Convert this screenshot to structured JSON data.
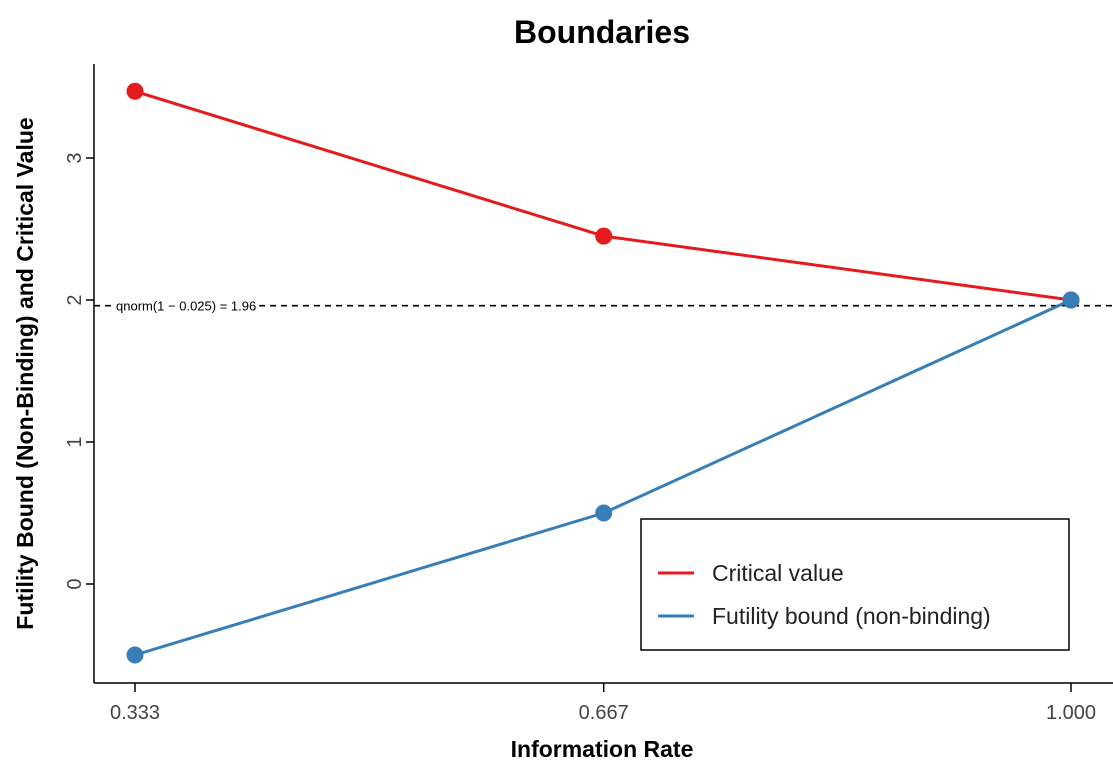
{
  "chart_data": {
    "type": "line",
    "title": "Boundaries",
    "xlabel": "Information Rate",
    "ylabel": "Futility Bound (Non-Binding) and Critical Value",
    "x": [
      0.333,
      0.667,
      1.0
    ],
    "x_tick_labels": [
      "0.333",
      "0.667",
      "1.000"
    ],
    "y_ticks": [
      0,
      1,
      2,
      3
    ],
    "y_tick_labels": [
      "0",
      "1",
      "2",
      "3"
    ],
    "xlim": [
      0.3,
      1.03
    ],
    "ylim": [
      -0.75,
      3.65
    ],
    "series": [
      {
        "name": "Critical value",
        "values": [
          3.47,
          2.45,
          2.0
        ],
        "color": "#e41a1c"
      },
      {
        "name": "Futility bound (non-binding)",
        "values": [
          -0.5,
          0.5,
          2.0
        ],
        "color": "#377eb8"
      }
    ],
    "reference_line": {
      "y": 1.96,
      "style": "dashed",
      "label": "qnorm(1 − 0.025) = 1.96"
    },
    "legend": {
      "position": "bottom-right",
      "entries": [
        "Critical value",
        "Futility bound (non-binding)"
      ]
    },
    "grid": false
  }
}
